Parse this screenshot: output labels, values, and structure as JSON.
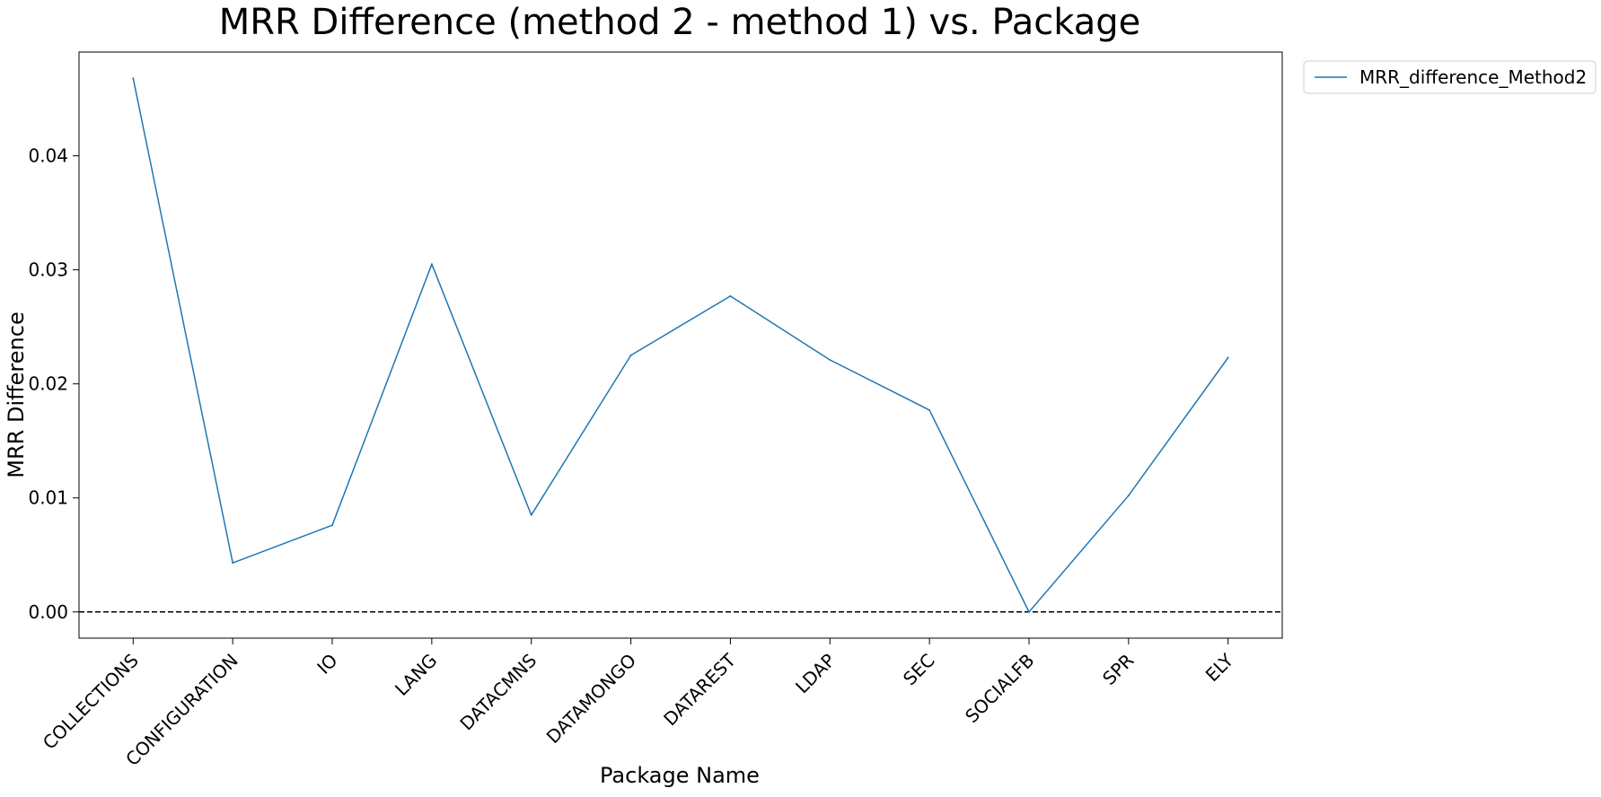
{
  "chart_data": {
    "type": "line",
    "title": "MRR Difference (method 2 - method 1) vs. Package",
    "xlabel": "Package Name",
    "ylabel": "MRR Difference",
    "categories": [
      "COLLECTIONS",
      "CONFIGURATION",
      "IO",
      "LANG",
      "DATACMNS",
      "DATAMONGO",
      "DATAREST",
      "LDAP",
      "SEC",
      "SOCIALFB",
      "SPR",
      "ELY"
    ],
    "series": [
      {
        "name": "MRR_difference_Method2",
        "color": "#1f77b4",
        "values": [
          0.0468,
          0.0043,
          0.0076,
          0.0305,
          0.0085,
          0.0225,
          0.0277,
          0.0221,
          0.0177,
          0.0,
          0.0102,
          0.0223
        ]
      }
    ],
    "yticks": [
      0.0,
      0.01,
      0.02,
      0.03,
      0.04
    ],
    "ytick_labels": [
      "0.00",
      "0.01",
      "0.02",
      "0.03",
      "0.04"
    ],
    "ylim": [
      -0.0023,
      0.0491
    ],
    "reference_line": {
      "y": 0.0,
      "style": "dashed",
      "color": "#000000"
    },
    "grid": false,
    "legend_position": "outside-top-right"
  }
}
